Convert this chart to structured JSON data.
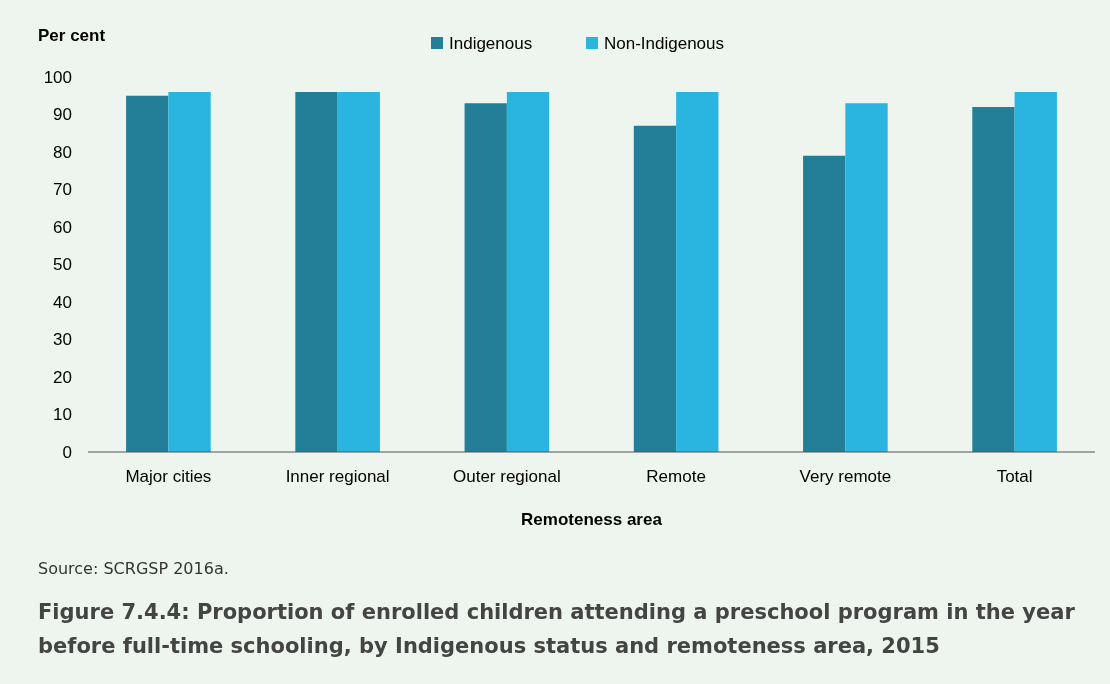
{
  "chart_data": {
    "type": "bar",
    "title": "Figure 7.4.4: Proportion of enrolled children attending a preschool program in the year before full-time schooling, by Indigenous status and remoteness area, 2015",
    "ylabel": "Per cent",
    "xlabel": "Remoteness area",
    "annotations": [
      "Source: SCRGSP 2016a."
    ],
    "categories": [
      "Major cities",
      "Inner regional",
      "Outer regional",
      "Remote",
      "Very remote",
      "Total"
    ],
    "series": [
      {
        "name": "Indigenous",
        "color": "#237f98",
        "values": [
          95,
          96,
          93,
          87,
          79,
          92
        ]
      },
      {
        "name": "Non-Indigenous",
        "color": "#29b5df",
        "values": [
          96,
          96,
          96,
          96,
          93,
          96
        ]
      }
    ],
    "ylim": [
      0,
      100
    ],
    "yticks": [
      0,
      10,
      20,
      30,
      40,
      50,
      60,
      70,
      80,
      90,
      100
    ],
    "grid": false,
    "legend": "top"
  }
}
